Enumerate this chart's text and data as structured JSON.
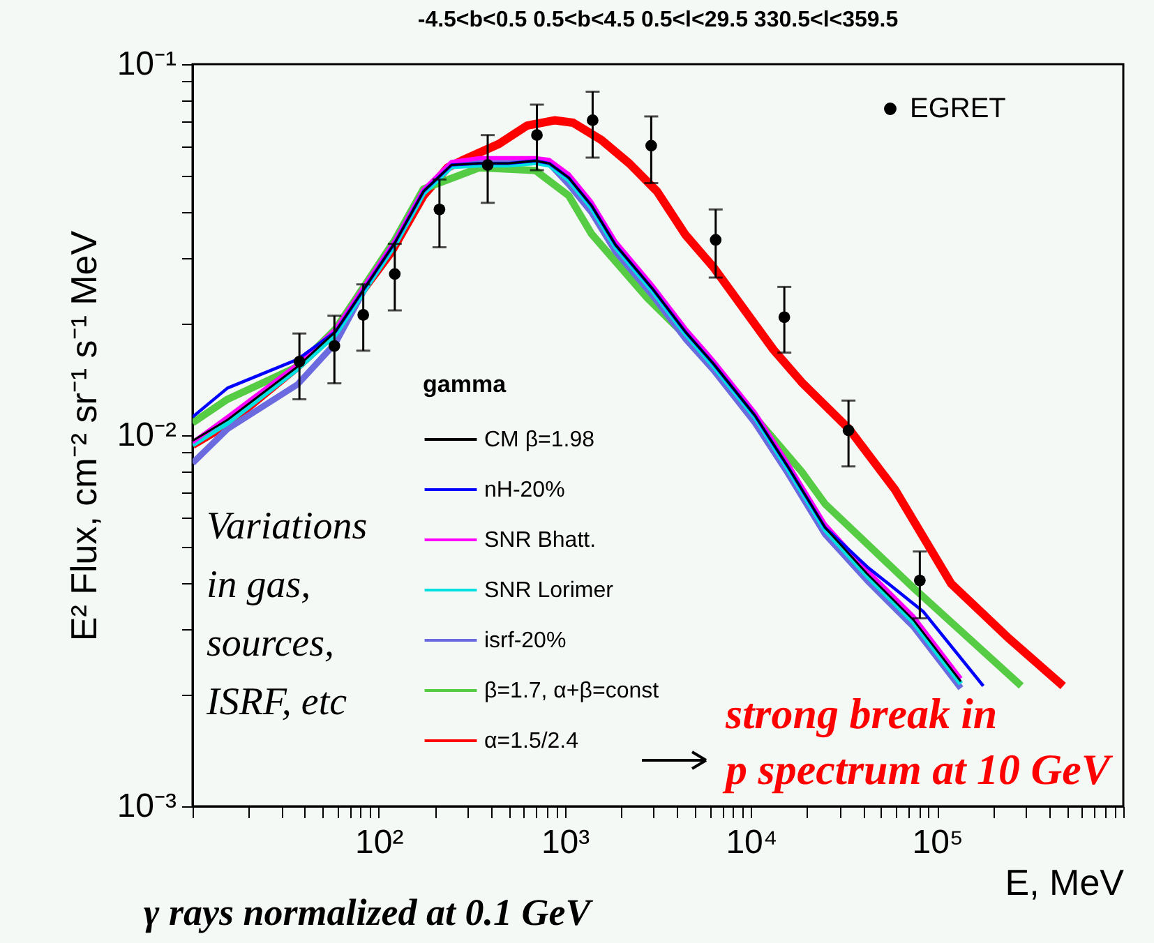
{
  "chart_data": {
    "type": "line",
    "title": "-4.5<b<0.5  0.5<b<4.5 0.5<l<29.5 330.5<l<359.5",
    "xlabel": "E, MeV",
    "ylabel": "E² Flux, cm⁻² sr⁻¹ s⁻¹ MeV",
    "legend_title": "gamma",
    "legend": "top right",
    "log": "xy",
    "xlim": [
      10,
      1000000
    ],
    "ylim": [
      0.001,
      0.1
    ],
    "xticks": [
      {
        "value": 10,
        "label": null
      },
      {
        "value": 20,
        "label": null
      },
      {
        "value": 30,
        "label": null
      },
      {
        "value": 40,
        "label": null
      },
      {
        "value": 50,
        "label": null
      },
      {
        "value": 60,
        "label": null
      },
      {
        "value": 70,
        "label": null
      },
      {
        "value": 80,
        "label": null
      },
      {
        "value": 90,
        "label": null
      },
      {
        "value": 100,
        "label": "10²"
      },
      {
        "value": 200,
        "label": null
      },
      {
        "value": 300,
        "label": null
      },
      {
        "value": 400,
        "label": null
      },
      {
        "value": 500,
        "label": null
      },
      {
        "value": 600,
        "label": null
      },
      {
        "value": 700,
        "label": null
      },
      {
        "value": 800,
        "label": null
      },
      {
        "value": 900,
        "label": null
      },
      {
        "value": 1000,
        "label": "10³"
      },
      {
        "value": 2000,
        "label": null
      },
      {
        "value": 3000,
        "label": null
      },
      {
        "value": 4000,
        "label": null
      },
      {
        "value": 5000,
        "label": null
      },
      {
        "value": 6000,
        "label": null
      },
      {
        "value": 7000,
        "label": null
      },
      {
        "value": 8000,
        "label": null
      },
      {
        "value": 9000,
        "label": null
      },
      {
        "value": 10000,
        "label": "10⁴"
      },
      {
        "value": 20000,
        "label": null
      },
      {
        "value": 30000,
        "label": null
      },
      {
        "value": 40000,
        "label": null
      },
      {
        "value": 50000,
        "label": null
      },
      {
        "value": 60000,
        "label": null
      },
      {
        "value": 70000,
        "label": null
      },
      {
        "value": 80000,
        "label": null
      },
      {
        "value": 90000,
        "label": null
      },
      {
        "value": 100000,
        "label": "10⁵"
      },
      {
        "value": 200000,
        "label": null
      },
      {
        "value": 300000,
        "label": null
      },
      {
        "value": 400000,
        "label": null
      },
      {
        "value": 500000,
        "label": null
      },
      {
        "value": 600000,
        "label": null
      },
      {
        "value": 700000,
        "label": null
      },
      {
        "value": 800000,
        "label": null
      },
      {
        "value": 900000,
        "label": null
      },
      {
        "value": 1000000,
        "label": null
      }
    ],
    "yticks": [
      {
        "value": 0.001,
        "label": "10⁻³"
      },
      {
        "value": 0.002,
        "label": null
      },
      {
        "value": 0.003,
        "label": null
      },
      {
        "value": 0.004,
        "label": null
      },
      {
        "value": 0.005,
        "label": null
      },
      {
        "value": 0.006,
        "label": null
      },
      {
        "value": 0.007,
        "label": null
      },
      {
        "value": 0.008,
        "label": null
      },
      {
        "value": 0.009,
        "label": null
      },
      {
        "value": 0.01,
        "label": "10⁻²"
      },
      {
        "value": 0.02,
        "label": null
      },
      {
        "value": 0.03,
        "label": null
      },
      {
        "value": 0.04,
        "label": null
      },
      {
        "value": 0.05,
        "label": null
      },
      {
        "value": 0.06,
        "label": null
      },
      {
        "value": 0.07,
        "label": null
      },
      {
        "value": 0.08,
        "label": null
      },
      {
        "value": 0.09,
        "label": null
      },
      {
        "value": 0.1,
        "label": "10⁻¹"
      }
    ],
    "series": [
      {
        "name": "CM β=1.98",
        "color": "#000000",
        "x": [
          10,
          15.4,
          36.6,
          58.5,
          87.1,
          123,
          174,
          246,
          348,
          492,
          695,
          826,
          1050,
          1390,
          1870,
          2980,
          4440,
          6270,
          10500,
          15700,
          25000,
          42100,
          74500,
          134000
        ],
        "values": [
          0.00966,
          0.011,
          0.0153,
          0.019,
          0.0256,
          0.0332,
          0.0454,
          0.0535,
          0.054,
          0.054,
          0.0549,
          0.054,
          0.0494,
          0.0416,
          0.0326,
          0.0247,
          0.019,
          0.0156,
          0.0113,
          0.00826,
          0.00564,
          0.00423,
          0.00318,
          0.00217
        ]
      },
      {
        "name": "nH-20%",
        "color": "#0000ff",
        "x": [
          10,
          15.4,
          36.6,
          58.5,
          87.1,
          123,
          174,
          246,
          348,
          492,
          695,
          826,
          1050,
          1390,
          1870,
          2980,
          4440,
          6270,
          10500,
          15700,
          25000,
          42100,
          84100,
          177000
        ],
        "values": [
          0.0112,
          0.0134,
          0.016,
          0.019,
          0.0256,
          0.0332,
          0.0454,
          0.0535,
          0.054,
          0.054,
          0.0549,
          0.054,
          0.0494,
          0.0416,
          0.0326,
          0.0247,
          0.019,
          0.0156,
          0.0113,
          0.00826,
          0.00564,
          0.00442,
          0.00335,
          0.00211
        ]
      },
      {
        "name": "SNR Bhatt.",
        "color": "#ff00ff",
        "x": [
          10,
          15.4,
          36.6,
          58.5,
          87.1,
          123,
          174,
          246,
          348,
          492,
          695,
          826,
          1050,
          1390,
          1870,
          2980,
          4440,
          6270,
          10500,
          15700,
          25000,
          42100,
          74500,
          134000
        ],
        "values": [
          0.00957,
          0.0112,
          0.0155,
          0.0193,
          0.026,
          0.0336,
          0.0459,
          0.0545,
          0.0558,
          0.0558,
          0.0558,
          0.0552,
          0.0505,
          0.0425,
          0.0333,
          0.0252,
          0.0194,
          0.0159,
          0.0115,
          0.00843,
          0.00575,
          0.00432,
          0.00325,
          0.00221
        ]
      },
      {
        "name": "SNR Lorimer",
        "color": "#00e0e0",
        "x": [
          10,
          15.4,
          36.6,
          58.5,
          87.1,
          123,
          174,
          246,
          348,
          492,
          695,
          826,
          1050,
          1390,
          1870,
          2980,
          4440,
          6270,
          10500,
          15700,
          25000,
          42100,
          74500,
          134000
        ],
        "values": [
          0.00942,
          0.0108,
          0.0151,
          0.0187,
          0.0253,
          0.0328,
          0.0449,
          0.053,
          0.0535,
          0.0535,
          0.0543,
          0.0535,
          0.0488,
          0.0411,
          0.0322,
          0.0244,
          0.0188,
          0.0154,
          0.0112,
          0.00816,
          0.00557,
          0.00418,
          0.00314,
          0.00214
        ]
      },
      {
        "name": "isrf-20%",
        "color": "#6b6bdf",
        "x": [
          10,
          15.4,
          36.6,
          58.5,
          87.1,
          123,
          174,
          246,
          348,
          492,
          695,
          826,
          1050,
          1390,
          1870,
          2980,
          4440,
          6270,
          10500,
          15700,
          25000,
          42100,
          74500,
          134000
        ],
        "values": [
          0.00841,
          0.0104,
          0.0137,
          0.0177,
          0.0256,
          0.0332,
          0.0454,
          0.0535,
          0.054,
          0.054,
          0.0549,
          0.054,
          0.0474,
          0.0399,
          0.0313,
          0.0237,
          0.0182,
          0.015,
          0.0108,
          0.00793,
          0.00541,
          0.00406,
          0.00305,
          0.00208
        ]
      },
      {
        "name": "β=1.7, α+β=const",
        "color": "#55cc44",
        "x": [
          10,
          15.4,
          36.6,
          58.5,
          87.1,
          123,
          174,
          348,
          695,
          1050,
          1390,
          2780,
          5000,
          9330,
          18700,
          25000,
          74500,
          283000
        ],
        "values": [
          0.0108,
          0.0125,
          0.0153,
          0.0193,
          0.026,
          0.0338,
          0.0461,
          0.0526,
          0.0517,
          0.0442,
          0.0349,
          0.0234,
          0.0175,
          0.012,
          0.00798,
          0.00653,
          0.00388,
          0.00211
        ]
      },
      {
        "name": "α=1.5/2.4",
        "color": "#ff0000",
        "x": [
          10,
          15.4,
          36.6,
          58.5,
          82.6,
          117,
          174,
          234,
          278,
          443,
          627,
          885,
          1110,
          1570,
          2220,
          3130,
          4440,
          6270,
          13200,
          18700,
          33600,
          59400,
          119000,
          238000,
          475000
        ],
        "values": [
          0.00942,
          0.0107,
          0.0153,
          0.019,
          0.0247,
          0.0312,
          0.0442,
          0.0526,
          0.0549,
          0.061,
          0.0683,
          0.0706,
          0.0695,
          0.0625,
          0.054,
          0.0454,
          0.0347,
          0.0284,
          0.017,
          0.0139,
          0.0104,
          0.00713,
          0.00398,
          0.00286,
          0.00211
        ]
      },
      {
        "name": "EGRET",
        "type": "scatter",
        "marker": "circle",
        "color": "#000000",
        "x": [
          37.5,
          57.8,
          82.6,
          122,
          212,
          385,
          708,
          1410,
          2910,
          6460,
          15100,
          33400,
          80700
        ],
        "values": [
          0.0158,
          0.0174,
          0.0211,
          0.0272,
          0.0406,
          0.0535,
          0.0644,
          0.0706,
          0.0603,
          0.0336,
          0.0208,
          0.0103,
          0.00406
        ],
        "errors": [
          [
            0.0125,
            0.0188
          ],
          [
            0.0138,
            0.021
          ],
          [
            0.0169,
            0.0255
          ],
          [
            0.0217,
            0.0328
          ],
          [
            0.0321,
            0.0489
          ],
          [
            0.0423,
            0.0644
          ],
          [
            0.0518,
            0.0778
          ],
          [
            0.056,
            0.0843
          ],
          [
            0.0478,
            0.0723
          ],
          [
            0.0266,
            0.0406
          ],
          [
            0.0167,
            0.0251
          ],
          [
            0.00824,
            0.0124
          ],
          [
            0.00321,
            0.00486
          ]
        ]
      }
    ],
    "annotations": [
      "strong break in\np spectrum at 10 GeV",
      "Variations\nin gas,\nsources,\nISRF, etc",
      "γ rays normalized at 0.1 GeV"
    ]
  }
}
